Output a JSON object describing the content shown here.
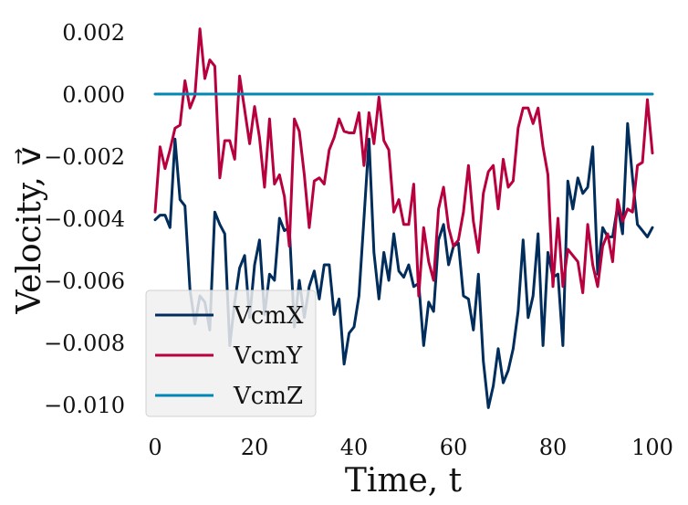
{
  "chart_data": {
    "type": "line",
    "title": "",
    "xlabel": "Time, t",
    "ylabel": "Velocity, v⃗",
    "xlim": [
      0,
      100
    ],
    "ylim": [
      -0.0105,
      0.0025
    ],
    "xticks": [
      0,
      20,
      40,
      60,
      80,
      100
    ],
    "xtick_labels": [
      "0",
      "20",
      "40",
      "60",
      "80",
      "100"
    ],
    "yticks": [
      0.002,
      0.0,
      -0.002,
      -0.004,
      -0.006,
      -0.008,
      -0.01
    ],
    "ytick_labels": [
      "0.002",
      "0.000",
      "−0.002",
      "−0.004",
      "−0.006",
      "−0.008",
      "−0.010"
    ],
    "grid": false,
    "legend_position": "lower-left",
    "x": [
      0,
      1,
      2,
      3,
      4,
      5,
      6,
      7,
      8,
      9,
      10,
      11,
      12,
      13,
      14,
      15,
      16,
      17,
      18,
      19,
      20,
      21,
      22,
      23,
      24,
      25,
      26,
      27,
      28,
      29,
      30,
      31,
      32,
      33,
      34,
      35,
      36,
      37,
      38,
      39,
      40,
      41,
      42,
      43,
      44,
      45,
      46,
      47,
      48,
      49,
      50,
      51,
      52,
      53,
      54,
      55,
      56,
      57,
      58,
      59,
      60,
      61,
      62,
      63,
      64,
      65,
      66,
      67,
      68,
      69,
      70,
      71,
      72,
      73,
      74,
      75,
      76,
      77,
      78,
      79,
      80,
      81,
      82,
      83,
      84,
      85,
      86,
      87,
      88,
      89,
      90,
      91,
      92,
      93,
      94,
      95,
      96,
      97,
      98,
      99,
      100
    ],
    "series": [
      {
        "name": "VcmX",
        "color": "#002d5c",
        "values": [
          -0.00405,
          -0.0039,
          -0.0039,
          -0.0043,
          -0.00145,
          -0.0034,
          -0.0036,
          -0.0063,
          -0.0074,
          -0.0065,
          -0.0067,
          -0.0076,
          -0.0038,
          -0.0042,
          -0.0045,
          -0.0081,
          -0.0067,
          -0.0056,
          -0.0052,
          -0.0072,
          -0.0055,
          -0.0047,
          -0.0071,
          -0.0058,
          -0.006,
          -0.004,
          -0.0044,
          -0.0043,
          -0.0075,
          -0.006,
          -0.0072,
          -0.0062,
          -0.0057,
          -0.0066,
          -0.0055,
          -0.0055,
          -0.0071,
          -0.0066,
          -0.0087,
          -0.0077,
          -0.0075,
          -0.0065,
          -0.004,
          -0.00145,
          -0.0051,
          -0.0066,
          -0.0051,
          -0.006,
          -0.0045,
          -0.0057,
          -0.0059,
          -0.0055,
          -0.0062,
          -0.0061,
          -0.0081,
          -0.0067,
          -0.007,
          -0.0047,
          -0.0042,
          -0.0055,
          -0.0049,
          -0.0048,
          -0.0065,
          -0.0066,
          -0.0076,
          -0.0058,
          -0.0086,
          -0.0101,
          -0.0094,
          -0.0082,
          -0.0093,
          -0.0089,
          -0.0082,
          -0.007,
          -0.0047,
          -0.0072,
          -0.0065,
          -0.0045,
          -0.0081,
          -0.0051,
          -0.0059,
          -0.0058,
          -0.0081,
          -0.0028,
          -0.0037,
          -0.0027,
          -0.0032,
          -0.003,
          -0.0017,
          -0.0058,
          -0.0043,
          -0.0046,
          -0.0046,
          -0.0036,
          -0.0045,
          -0.00095,
          -0.0027,
          -0.0042,
          -0.0044,
          -0.0046,
          -0.0043
        ]
      },
      {
        "name": "VcmY",
        "color": "#b9003f",
        "values": [
          -0.0038,
          -0.0017,
          -0.0024,
          -0.0018,
          -0.0011,
          -0.001,
          0.00043,
          -0.00045,
          -5e-05,
          0.0021,
          0.0005,
          0.0011,
          0.0009,
          -0.0027,
          -0.0015,
          -0.0015,
          -0.0021,
          0.00058,
          -0.0005,
          -0.0016,
          -0.0004,
          -0.0014,
          -0.003,
          -0.0008,
          -0.0029,
          -0.0026,
          -0.0033,
          -0.0049,
          -0.0008,
          -0.0012,
          -0.0026,
          -0.0043,
          -0.0028,
          -0.0027,
          -0.0029,
          -0.0018,
          -0.0014,
          -0.0008,
          -0.0012,
          -0.00125,
          -0.00125,
          -0.0006,
          -0.0023,
          -0.0006,
          -0.0016,
          -0.0001,
          -0.0015,
          -0.0018,
          -0.0038,
          -0.0034,
          -0.0042,
          -0.0042,
          -0.0029,
          -0.0065,
          -0.0043,
          -0.0054,
          -0.006,
          -0.0037,
          -0.003,
          -0.0043,
          -0.0049,
          -0.0047,
          -0.0038,
          -0.0023,
          -0.0041,
          -0.0051,
          -0.0032,
          -0.0025,
          -0.0023,
          -0.0037,
          -0.0021,
          -0.003,
          -0.0028,
          -0.0011,
          -0.00045,
          -0.00045,
          -0.00095,
          -0.00045,
          -0.0017,
          -0.0026,
          -0.0062,
          -0.004,
          -0.0062,
          -0.005,
          -0.0052,
          -0.0054,
          -0.0064,
          -0.0042,
          -0.0055,
          -0.0062,
          -0.0049,
          -0.0045,
          -0.0054,
          -0.0034,
          -0.0041,
          -0.0037,
          -0.0038,
          -0.0023,
          -0.0022,
          -0.00018,
          -0.0019
        ]
      },
      {
        "name": "VcmZ",
        "color": "#0087b5",
        "values": [
          0,
          0,
          0,
          0,
          0,
          0,
          0,
          0,
          0,
          0,
          0,
          0,
          0,
          0,
          0,
          0,
          0,
          0,
          0,
          0,
          0,
          0,
          0,
          0,
          0,
          0,
          0,
          0,
          0,
          0,
          0,
          0,
          0,
          0,
          0,
          0,
          0,
          0,
          0,
          0,
          0,
          0,
          0,
          0,
          0,
          0,
          0,
          0,
          0,
          0,
          0,
          0,
          0,
          0,
          0,
          0,
          0,
          0,
          0,
          0,
          0,
          0,
          0,
          0,
          0,
          0,
          0,
          0,
          0,
          0,
          0,
          0,
          0,
          0,
          0,
          0,
          0,
          0,
          0,
          0,
          0,
          0,
          0,
          0,
          0,
          0,
          0,
          0,
          0,
          0,
          0,
          0,
          0,
          0,
          0,
          0,
          0,
          0,
          0,
          0,
          0
        ]
      }
    ]
  }
}
